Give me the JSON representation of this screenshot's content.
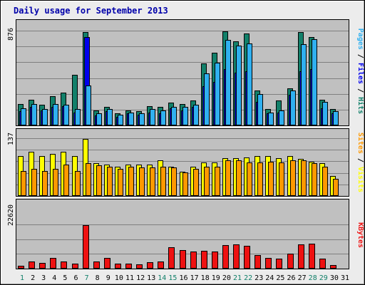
{
  "chart_data": {
    "type": "bar",
    "title": "Daily usage for September 2013",
    "days": [
      "1",
      "2",
      "3",
      "4",
      "5",
      "6",
      "7",
      "8",
      "9",
      "10",
      "11",
      "12",
      "13",
      "14",
      "15",
      "16",
      "17",
      "18",
      "19",
      "20",
      "21",
      "22",
      "23",
      "24",
      "25",
      "26",
      "27",
      "28",
      "29",
      "30",
      "31"
    ],
    "weekend_days": [
      1,
      7,
      14,
      15,
      21,
      22,
      28,
      29
    ],
    "panels": {
      "top": {
        "ymax_label": "876",
        "ymax": 876,
        "series": [
          {
            "name": "Hits",
            "color": "#12806a",
            "values": [
              200,
              240,
              190,
              270,
              300,
              470,
              860,
              140,
              170,
              110,
              140,
              130,
              180,
              170,
              210,
              200,
              230,
              570,
              670,
              870,
              780,
              850,
              320,
              150,
              230,
              340,
              860,
              820,
              240,
              150,
              0
            ]
          },
          {
            "name": "Files",
            "color": "#0000ee",
            "values": [
              130,
              170,
              140,
              170,
              180,
              120,
              820,
              90,
              130,
              80,
              110,
              100,
              120,
              110,
              160,
              140,
              170,
              360,
              400,
              520,
              490,
              500,
              220,
              110,
              120,
              280,
              500,
              520,
              160,
              110,
              0
            ]
          },
          {
            "name": "Pages",
            "color": "#30b0f0",
            "values": [
              160,
              200,
              150,
              200,
              190,
              150,
              370,
              110,
              150,
              100,
              120,
              110,
              150,
              140,
              170,
              170,
              190,
              480,
              580,
              790,
              740,
              760,
              290,
              120,
              140,
              320,
              750,
              800,
              220,
              130,
              0
            ]
          }
        ]
      },
      "middle": {
        "ymax_label": "137",
        "ymax": 137,
        "series": [
          {
            "name": "Visits",
            "color": "#ffff00",
            "values": [
              95,
              105,
              95,
              100,
              105,
              95,
              135,
              78,
              75,
              70,
              75,
              74,
              75,
              85,
              70,
              58,
              70,
              80,
              80,
              90,
              90,
              92,
              95,
              95,
              90,
              95,
              88,
              82,
              78,
              48,
              0
            ]
          },
          {
            "name": "Sites",
            "color": "#ff9900",
            "values": [
              60,
              65,
              60,
              65,
              75,
              60,
              78,
              72,
              70,
              65,
              70,
              68,
              68,
              70,
              68,
              55,
              65,
              70,
              70,
              85,
              85,
              80,
              80,
              82,
              80,
              85,
              85,
              78,
              70,
              40,
              0
            ]
          }
        ]
      },
      "bottom": {
        "ymax_label": "22620",
        "ymax": 22620,
        "series": [
          {
            "name": "KBytes",
            "color": "#ee1111",
            "values": [
              1300,
              3500,
              2800,
              5300,
              3500,
              2500,
              22400,
              3800,
              5400,
              2400,
              2500,
              2300,
              3200,
              3700,
              10800,
              9500,
              8600,
              9000,
              8700,
              12200,
              12300,
              11800,
              7000,
              5400,
              5200,
              7800,
              12300,
              12900,
              5100,
              1800,
              0
            ]
          }
        ]
      }
    },
    "legend_right": {
      "top": [
        {
          "text": "Pages",
          "color": "#30b0f0"
        },
        {
          "text": " / ",
          "color": "#000000"
        },
        {
          "text": "Files",
          "color": "#0000ee"
        },
        {
          "text": " / ",
          "color": "#000000"
        },
        {
          "text": "Hits",
          "color": "#12806a"
        }
      ],
      "middle": [
        {
          "text": "Sites",
          "color": "#ff9900"
        },
        {
          "text": " / ",
          "color": "#000000"
        },
        {
          "text": "Visits",
          "color": "#ffff00"
        }
      ],
      "bottom": [
        {
          "text": "KBytes",
          "color": "#ee1111"
        }
      ]
    },
    "colors": {
      "plot_background": "#c0c0c0",
      "grid": "#7f7f7f",
      "title": "#0000aa",
      "weekday_label": "#000000",
      "weekend_label": "#12806a"
    }
  }
}
